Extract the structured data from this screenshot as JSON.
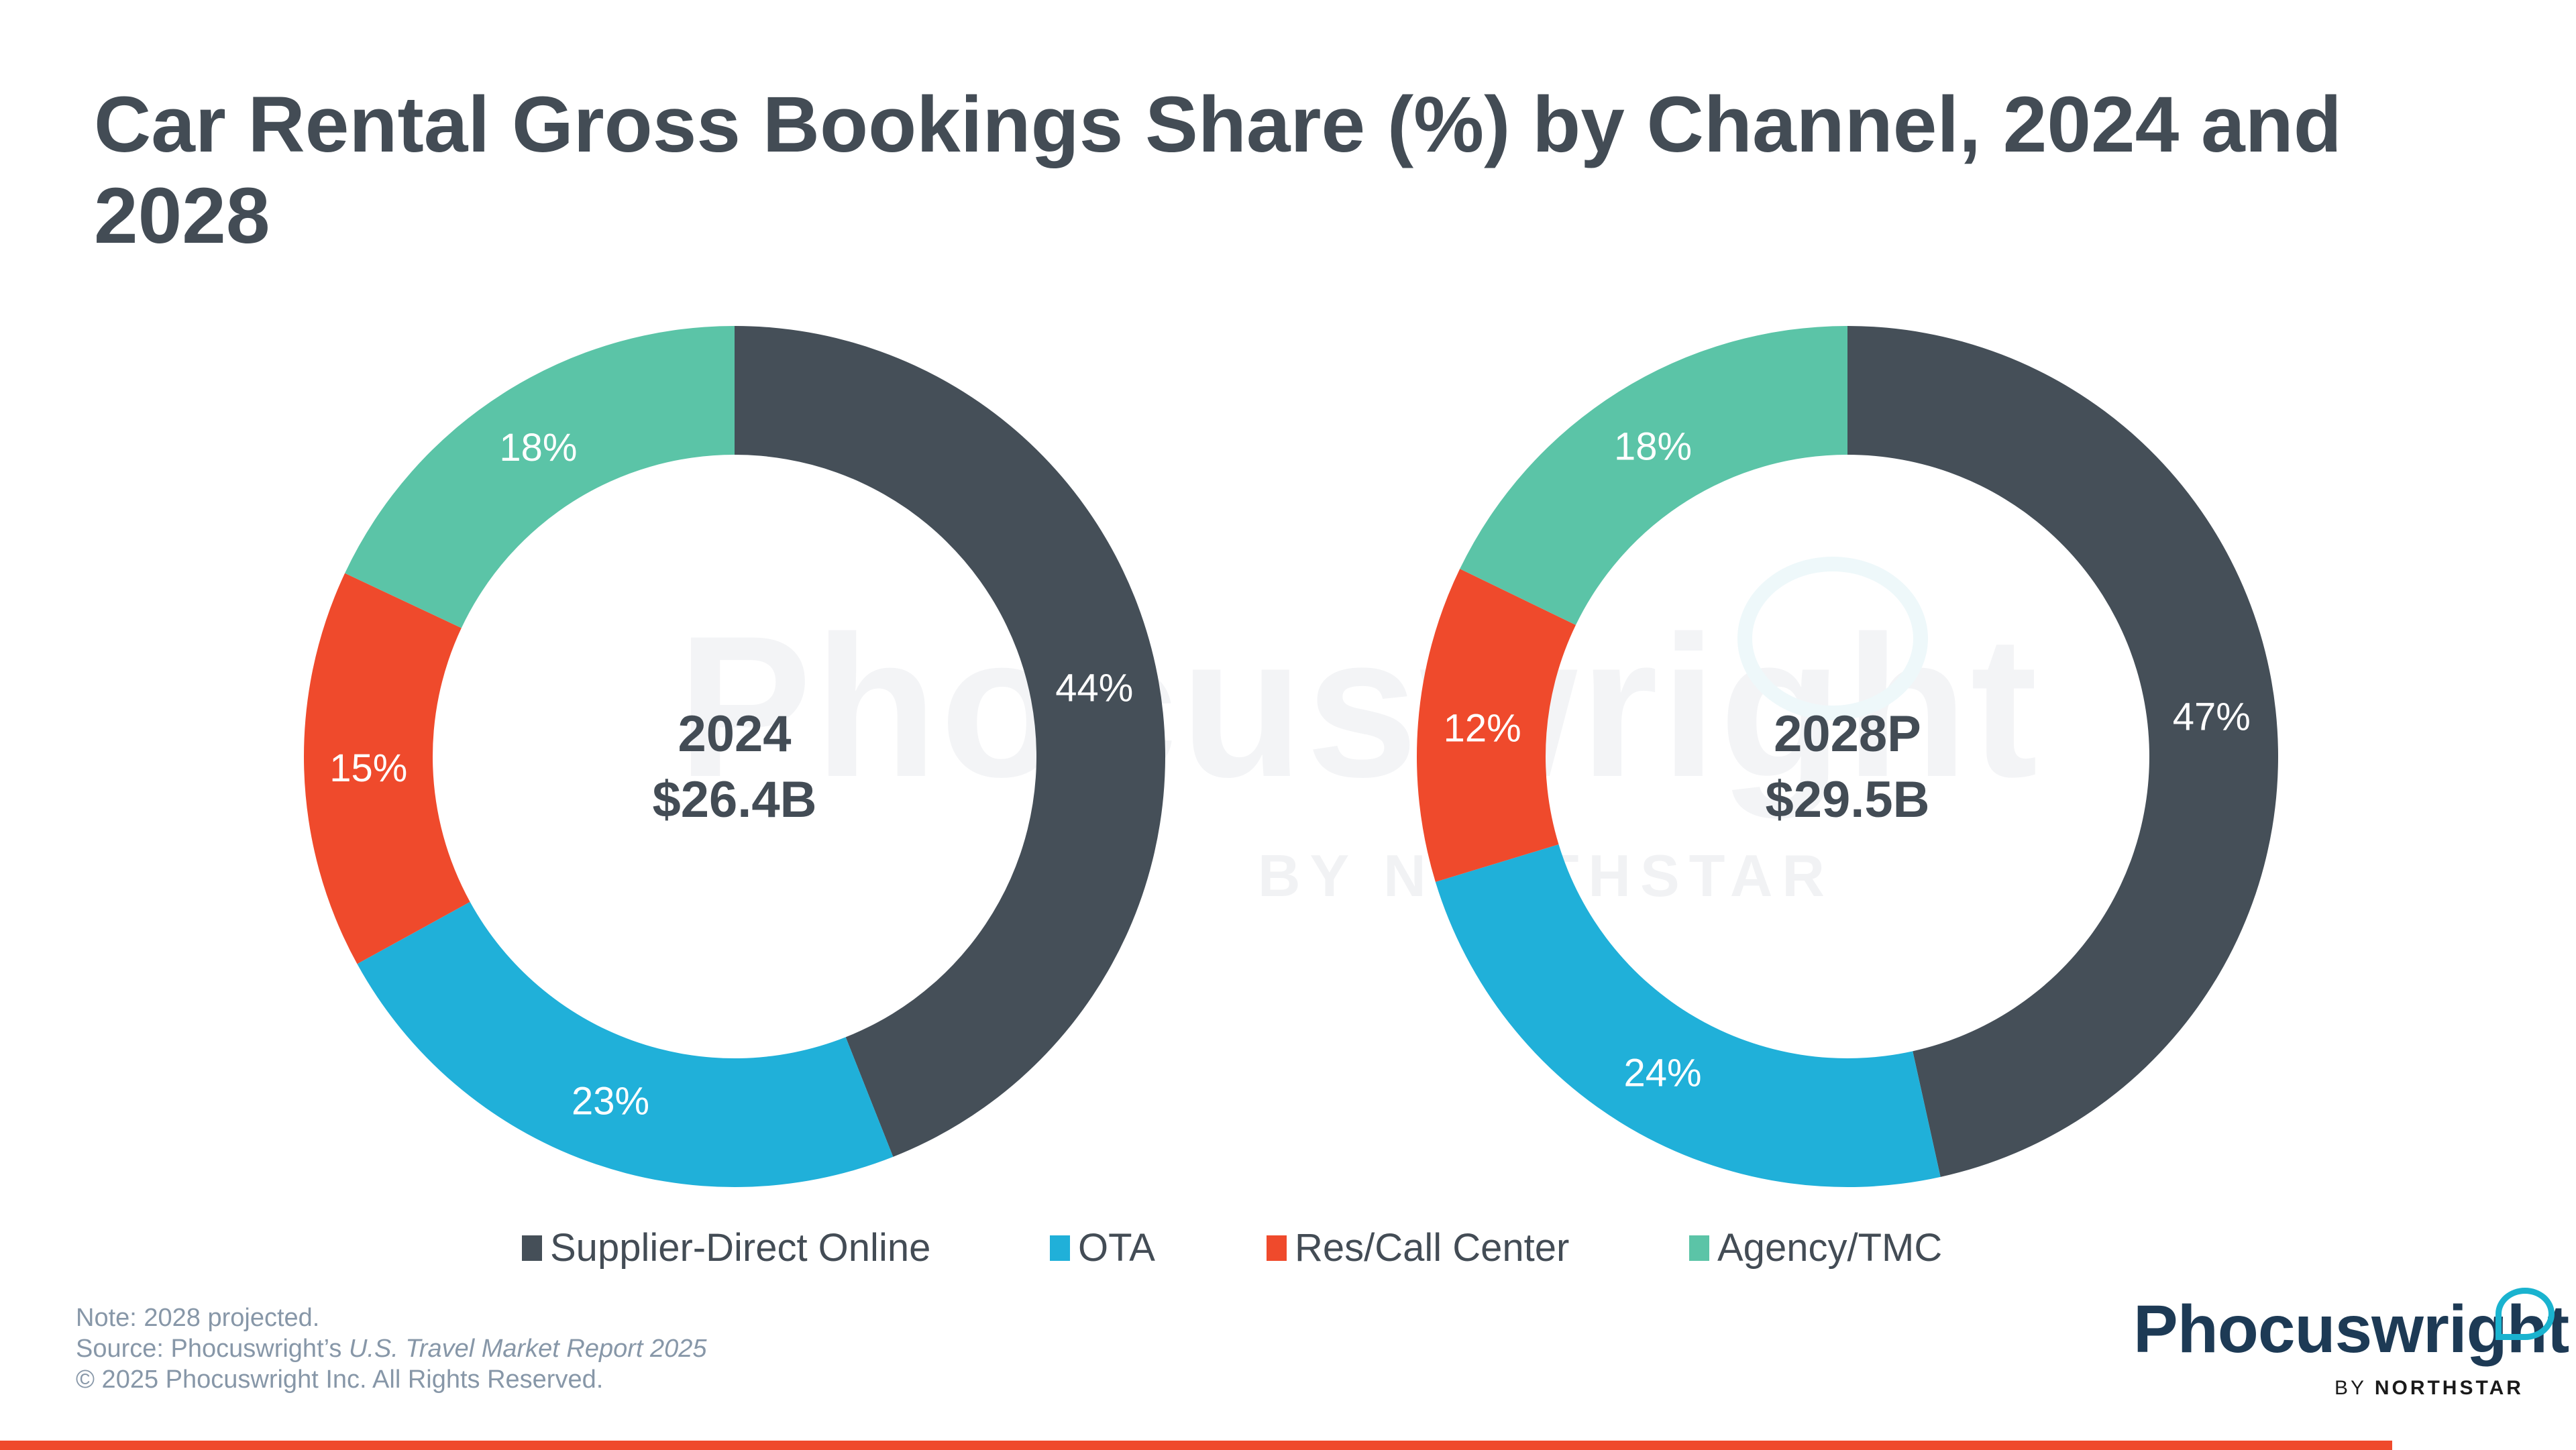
{
  "title": "Car Rental Gross Bookings Share (%) by Channel, 2024 and 2028",
  "watermark": {
    "main": "Phocuswright",
    "sub": "BY NORTHSTAR"
  },
  "chart_data": {
    "type": "pie",
    "subtype": "donut",
    "title": "Car Rental Gross Bookings Share (%) by Channel, 2024 and 2028",
    "categories": [
      "Supplier-Direct Online",
      "OTA",
      "Res/Call Center",
      "Agency/TMC"
    ],
    "colors": [
      "#454f58",
      "#20b0d9",
      "#ef4a2c",
      "#5bc4a7"
    ],
    "charts": [
      {
        "name": "2024",
        "center_label": "2024",
        "center_value": "$26.4B",
        "values": [
          44,
          23,
          15,
          18
        ],
        "labels": [
          "44%",
          "23%",
          "15%",
          "18%"
        ]
      },
      {
        "name": "2028P",
        "center_label": "2028P",
        "center_value": "$29.5B",
        "values": [
          47,
          24,
          12,
          18
        ],
        "labels": [
          "47%",
          "24%",
          "12%",
          "18%"
        ]
      }
    ],
    "legend_position": "bottom",
    "start_angle": "12 o'clock, clockwise"
  },
  "legend": [
    {
      "label": "Supplier-Direct Online",
      "color": "#454f58"
    },
    {
      "label": "OTA",
      "color": "#20b0d9"
    },
    {
      "label": "Res/Call Center",
      "color": "#ef4a2c"
    },
    {
      "label": "Agency/TMC",
      "color": "#5bc4a7"
    }
  ],
  "footer": {
    "note": "Note: 2028 projected.",
    "source_prefix": "Source: Phocuswright’s ",
    "source_title": "U.S. Travel Market Report 2025",
    "copyright": "© 2025 Phocuswright Inc. All Rights Reserved."
  },
  "logo": {
    "name": "Phocuswright",
    "sub_prefix": "BY ",
    "sub_brand": "NORTHSTAR"
  },
  "accent_color": "#ef4a2c"
}
